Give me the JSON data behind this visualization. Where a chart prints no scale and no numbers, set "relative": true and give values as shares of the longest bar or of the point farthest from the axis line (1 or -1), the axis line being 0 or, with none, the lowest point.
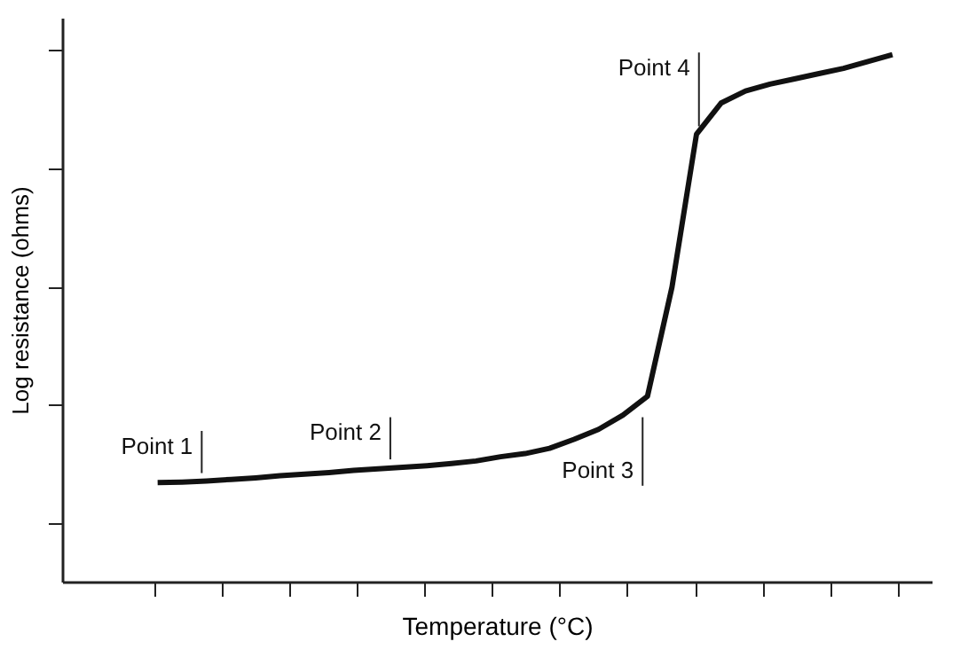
{
  "chart_data": {
    "type": "line",
    "relative": true,
    "xlabel": "Temperature (°C)",
    "ylabel": "Log resistance (ohms)",
    "categories": [
      null,
      null,
      null,
      null,
      null,
      null,
      null,
      null,
      null,
      null,
      null,
      null,
      null,
      null,
      null,
      null,
      null,
      null,
      null,
      null,
      null,
      null,
      null,
      null,
      null,
      null,
      null,
      null,
      null,
      null,
      null
    ],
    "series": [
      {
        "color": "#111111",
        "values": [
          0.188,
          0.189,
          0.191,
          0.194,
          0.197,
          0.201,
          0.204,
          0.207,
          0.211,
          0.214,
          0.217,
          0.22,
          0.224,
          0.229,
          0.237,
          0.243,
          0.253,
          0.27,
          0.289,
          0.316,
          0.352,
          0.559,
          0.849,
          0.908,
          0.931,
          0.944,
          0.954,
          0.964,
          0.974,
          0.987,
          1.0
        ]
      }
    ],
    "annotations": [
      "Point 1",
      "Point 2",
      "Point 3",
      "Point 4"
    ],
    "grid": false,
    "marker": "none",
    "line_style": "solid"
  }
}
